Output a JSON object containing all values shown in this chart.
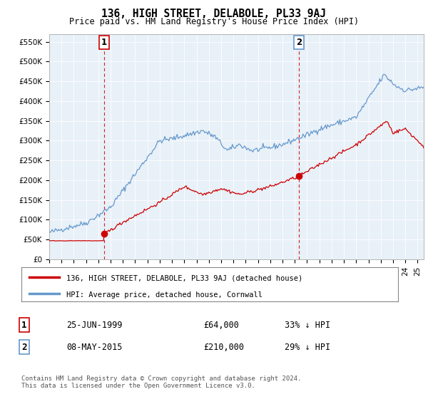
{
  "title": "136, HIGH STREET, DELABOLE, PL33 9AJ",
  "subtitle": "Price paid vs. HM Land Registry's House Price Index (HPI)",
  "ylabel_ticks": [
    "£0",
    "£50K",
    "£100K",
    "£150K",
    "£200K",
    "£250K",
    "£300K",
    "£350K",
    "£400K",
    "£450K",
    "£500K",
    "£550K"
  ],
  "ytick_values": [
    0,
    50000,
    100000,
    150000,
    200000,
    250000,
    300000,
    350000,
    400000,
    450000,
    500000,
    550000
  ],
  "ylim": [
    0,
    570000
  ],
  "xlim_min": 1995.0,
  "xlim_max": 2025.5,
  "transaction1": {
    "date_num": 1999.48,
    "value": 64000,
    "label": "1"
  },
  "transaction2": {
    "date_num": 2015.35,
    "value": 210000,
    "label": "2"
  },
  "legend_entry1": "136, HIGH STREET, DELABOLE, PL33 9AJ (detached house)",
  "legend_entry2": "HPI: Average price, detached house, Cornwall",
  "annotation1_date": "25-JUN-1999",
  "annotation1_price": "£64,000",
  "annotation1_hpi": "33% ↓ HPI",
  "annotation2_date": "08-MAY-2015",
  "annotation2_price": "£210,000",
  "annotation2_hpi": "29% ↓ HPI",
  "footnote": "Contains HM Land Registry data © Crown copyright and database right 2024.\nThis data is licensed under the Open Government Licence v3.0.",
  "line_color_paid": "#cc0000",
  "line_color_hpi": "#6699cc",
  "vline_color": "#cc0000",
  "plot_bg_color": "#e8f0f8",
  "bg_color": "#ffffff",
  "grid_color": "#ffffff"
}
